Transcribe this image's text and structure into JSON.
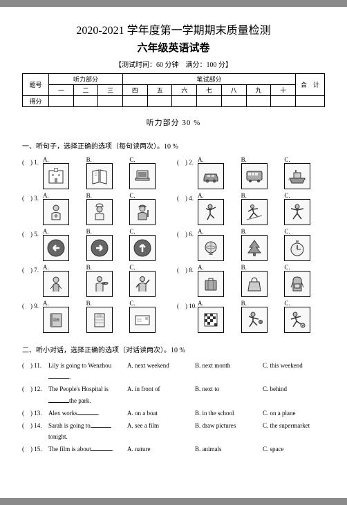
{
  "header": {
    "title_line1": "2020-2021 学年度第一学期期末质量检测",
    "title_line2": "六年级英语试卷",
    "meta": "【测试时间：60 分钟　满分：100 分】"
  },
  "score_table": {
    "row_label_1": "题号",
    "row_label_2": "得分",
    "listening_hdr": "听力部分",
    "written_hdr": "笔试部分",
    "total_hdr": "合　计",
    "cols": [
      "一",
      "二",
      "三",
      "四",
      "五",
      "六",
      "七",
      "八",
      "九",
      "十"
    ]
  },
  "listening_section_hdr": "听力部分 30 %",
  "part1": {
    "instr": "一、听句子，选择正确的选项（每句读两次）。10 %",
    "items": [
      {
        "n": "1",
        "opts": [
          "A.",
          "B.",
          "C."
        ],
        "icons": [
          "hospital",
          "book",
          "laptop"
        ]
      },
      {
        "n": "2",
        "opts": [
          "A.",
          "B.",
          "C."
        ],
        "icons": [
          "car",
          "bus",
          "ship"
        ]
      },
      {
        "n": "3",
        "opts": [
          "A.",
          "B.",
          "C."
        ],
        "icons": [
          "doctor",
          "chef",
          "worker"
        ]
      },
      {
        "n": "4",
        "opts": [
          "A.",
          "B.",
          "C."
        ],
        "icons": [
          "dance",
          "ski",
          "kungfu"
        ]
      },
      {
        "n": "5",
        "opts": [
          "A.",
          "B.",
          "C."
        ],
        "icons": [
          "left",
          "right",
          "up"
        ]
      },
      {
        "n": "6",
        "opts": [
          "A.",
          "B.",
          "C."
        ],
        "icons": [
          "globe",
          "tree",
          "stopwatch"
        ]
      },
      {
        "n": "7",
        "opts": [
          "A.",
          "B.",
          "C."
        ],
        "icons": [
          "kid",
          "waiter",
          "greet"
        ]
      },
      {
        "n": "8",
        "opts": [
          "A.",
          "B.",
          "C."
        ],
        "icons": [
          "suitcase",
          "bag",
          "backpack"
        ]
      },
      {
        "n": "9",
        "opts": [
          "A.",
          "B.",
          "C."
        ],
        "icons": [
          "dict",
          "notebook",
          "postcard"
        ]
      },
      {
        "n": "10",
        "opts": [
          "A.",
          "B.",
          "C."
        ],
        "icons": [
          "puzzle",
          "sport",
          "soccer"
        ]
      }
    ]
  },
  "part2": {
    "instr": "二、听小对话，选择正确的选项（对话读两次）。10 %",
    "items": [
      {
        "n": "11",
        "stem": "Lily is going to Wenzhou",
        "A": "A. next weekend",
        "B": "B. next month",
        "C": "C. this weekend"
      },
      {
        "n": "12",
        "stem_a": "The People's Hospital is",
        "stem_b": "the park.",
        "A": "A. in front of",
        "B": "B. next to",
        "C": "C. behind"
      },
      {
        "n": "13",
        "stem": "Alex works",
        "A": "A. on a boat",
        "B": "B. in the school",
        "C": "C. on a plane"
      },
      {
        "n": "14",
        "stem_a": "Sarah is going to",
        "stem_b": "tonight.",
        "A": "A. see a film",
        "B": "B. draw pictures",
        "C": "C. the supermarket"
      },
      {
        "n": "15",
        "stem": "The film is about",
        "A": "A. nature",
        "B": "B. animals",
        "C": "C. space"
      }
    ]
  },
  "colors": {
    "page_bg": "#ffffff",
    "outer_bg": "#8a8a8a",
    "text": "#000000",
    "border": "#000000"
  }
}
